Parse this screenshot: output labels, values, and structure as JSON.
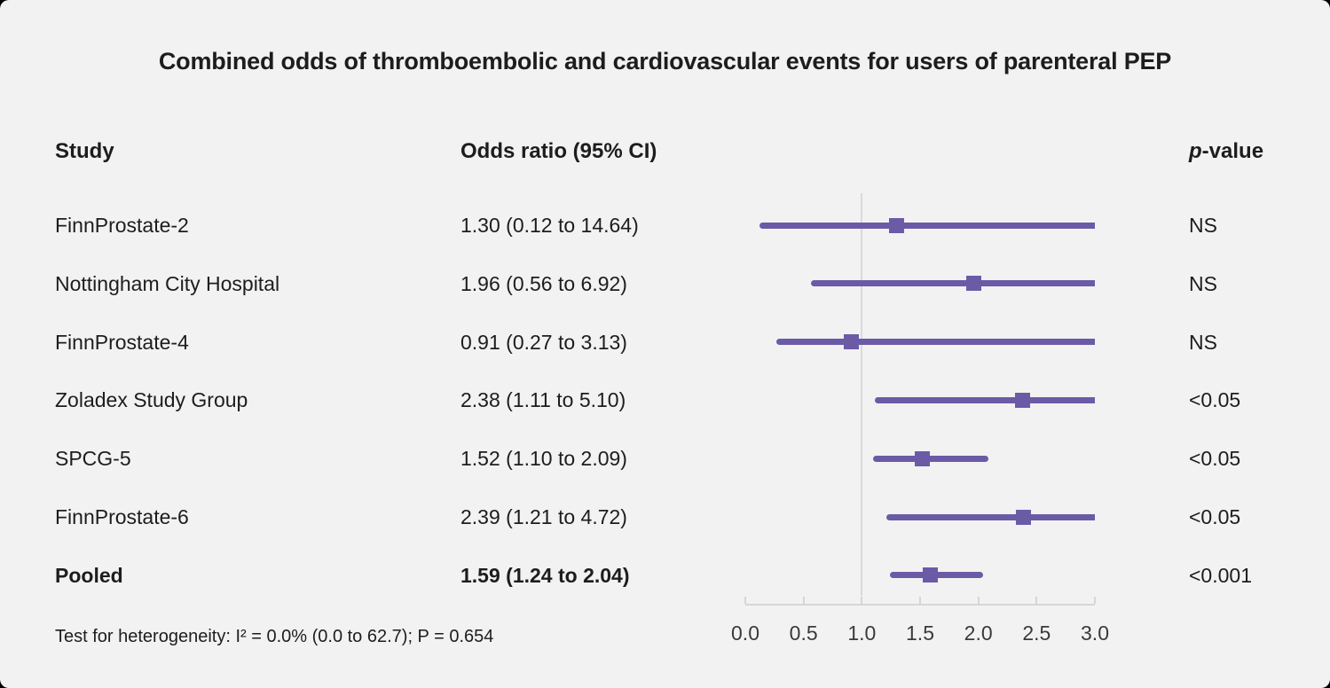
{
  "title": "Combined odds of thromboembolic and cardiovascular events for users of parenteral PEP",
  "columns": {
    "study": "Study",
    "odds_ratio": "Odds ratio (95% CI)",
    "p_prefix": "p",
    "p_suffix": "-value"
  },
  "footer": "Test for heterogeneity: I² = 0.0% (0.0 to 62.7); P = 0.654",
  "colors": {
    "accent": "#6b5ba7",
    "background": "#f2f2f2",
    "text": "#1d1d1d",
    "axis": "#d3d7db",
    "reference_line": "#d6dbdf"
  },
  "chart_data": {
    "type": "scatter",
    "subtype": "forest-plot",
    "title": "Combined odds of thromboembolic and cardiovascular events for users of parenteral PEP",
    "xlabel": "",
    "ylabel": "",
    "x_range": [
      0.0,
      3.0
    ],
    "x_ticks": [
      "0.0",
      "0.5",
      "1.0",
      "1.5",
      "2.0",
      "2.5",
      "3.0"
    ],
    "reference_line_x": 1.0,
    "grid": false,
    "legend": "none",
    "studies": [
      {
        "label": "FinnProstate-2",
        "or_text": "1.30 (0.12 to 14.64)",
        "estimate": 1.3,
        "ci_low": 0.12,
        "ci_high": 14.64,
        "p_value": "NS",
        "bold": false
      },
      {
        "label": "Nottingham City Hospital",
        "or_text": "1.96 (0.56 to 6.92)",
        "estimate": 1.96,
        "ci_low": 0.56,
        "ci_high": 6.92,
        "p_value": "NS",
        "bold": false
      },
      {
        "label": "FinnProstate-4",
        "or_text": "0.91 (0.27 to 3.13)",
        "estimate": 0.91,
        "ci_low": 0.27,
        "ci_high": 3.13,
        "p_value": "NS",
        "bold": false
      },
      {
        "label": "Zoladex Study Group",
        "or_text": "2.38 (1.11 to 5.10)",
        "estimate": 2.38,
        "ci_low": 1.11,
        "ci_high": 5.1,
        "p_value": "<0.05",
        "bold": false
      },
      {
        "label": "SPCG-5",
        "or_text": "1.52 (1.10 to 2.09)",
        "estimate": 1.52,
        "ci_low": 1.1,
        "ci_high": 2.09,
        "p_value": "<0.05",
        "bold": false
      },
      {
        "label": "FinnProstate-6",
        "or_text": "2.39 (1.21 to 4.72)",
        "estimate": 2.39,
        "ci_low": 1.21,
        "ci_high": 4.72,
        "p_value": "<0.05",
        "bold": false
      },
      {
        "label": "Pooled",
        "or_text": "1.59 (1.24 to 2.04)",
        "estimate": 1.59,
        "ci_low": 1.24,
        "ci_high": 2.04,
        "p_value": "<0.001",
        "bold": true
      }
    ],
    "heterogeneity_note": "Test for heterogeneity: I² = 0.0% (0.0 to 62.7); P = 0.654"
  }
}
